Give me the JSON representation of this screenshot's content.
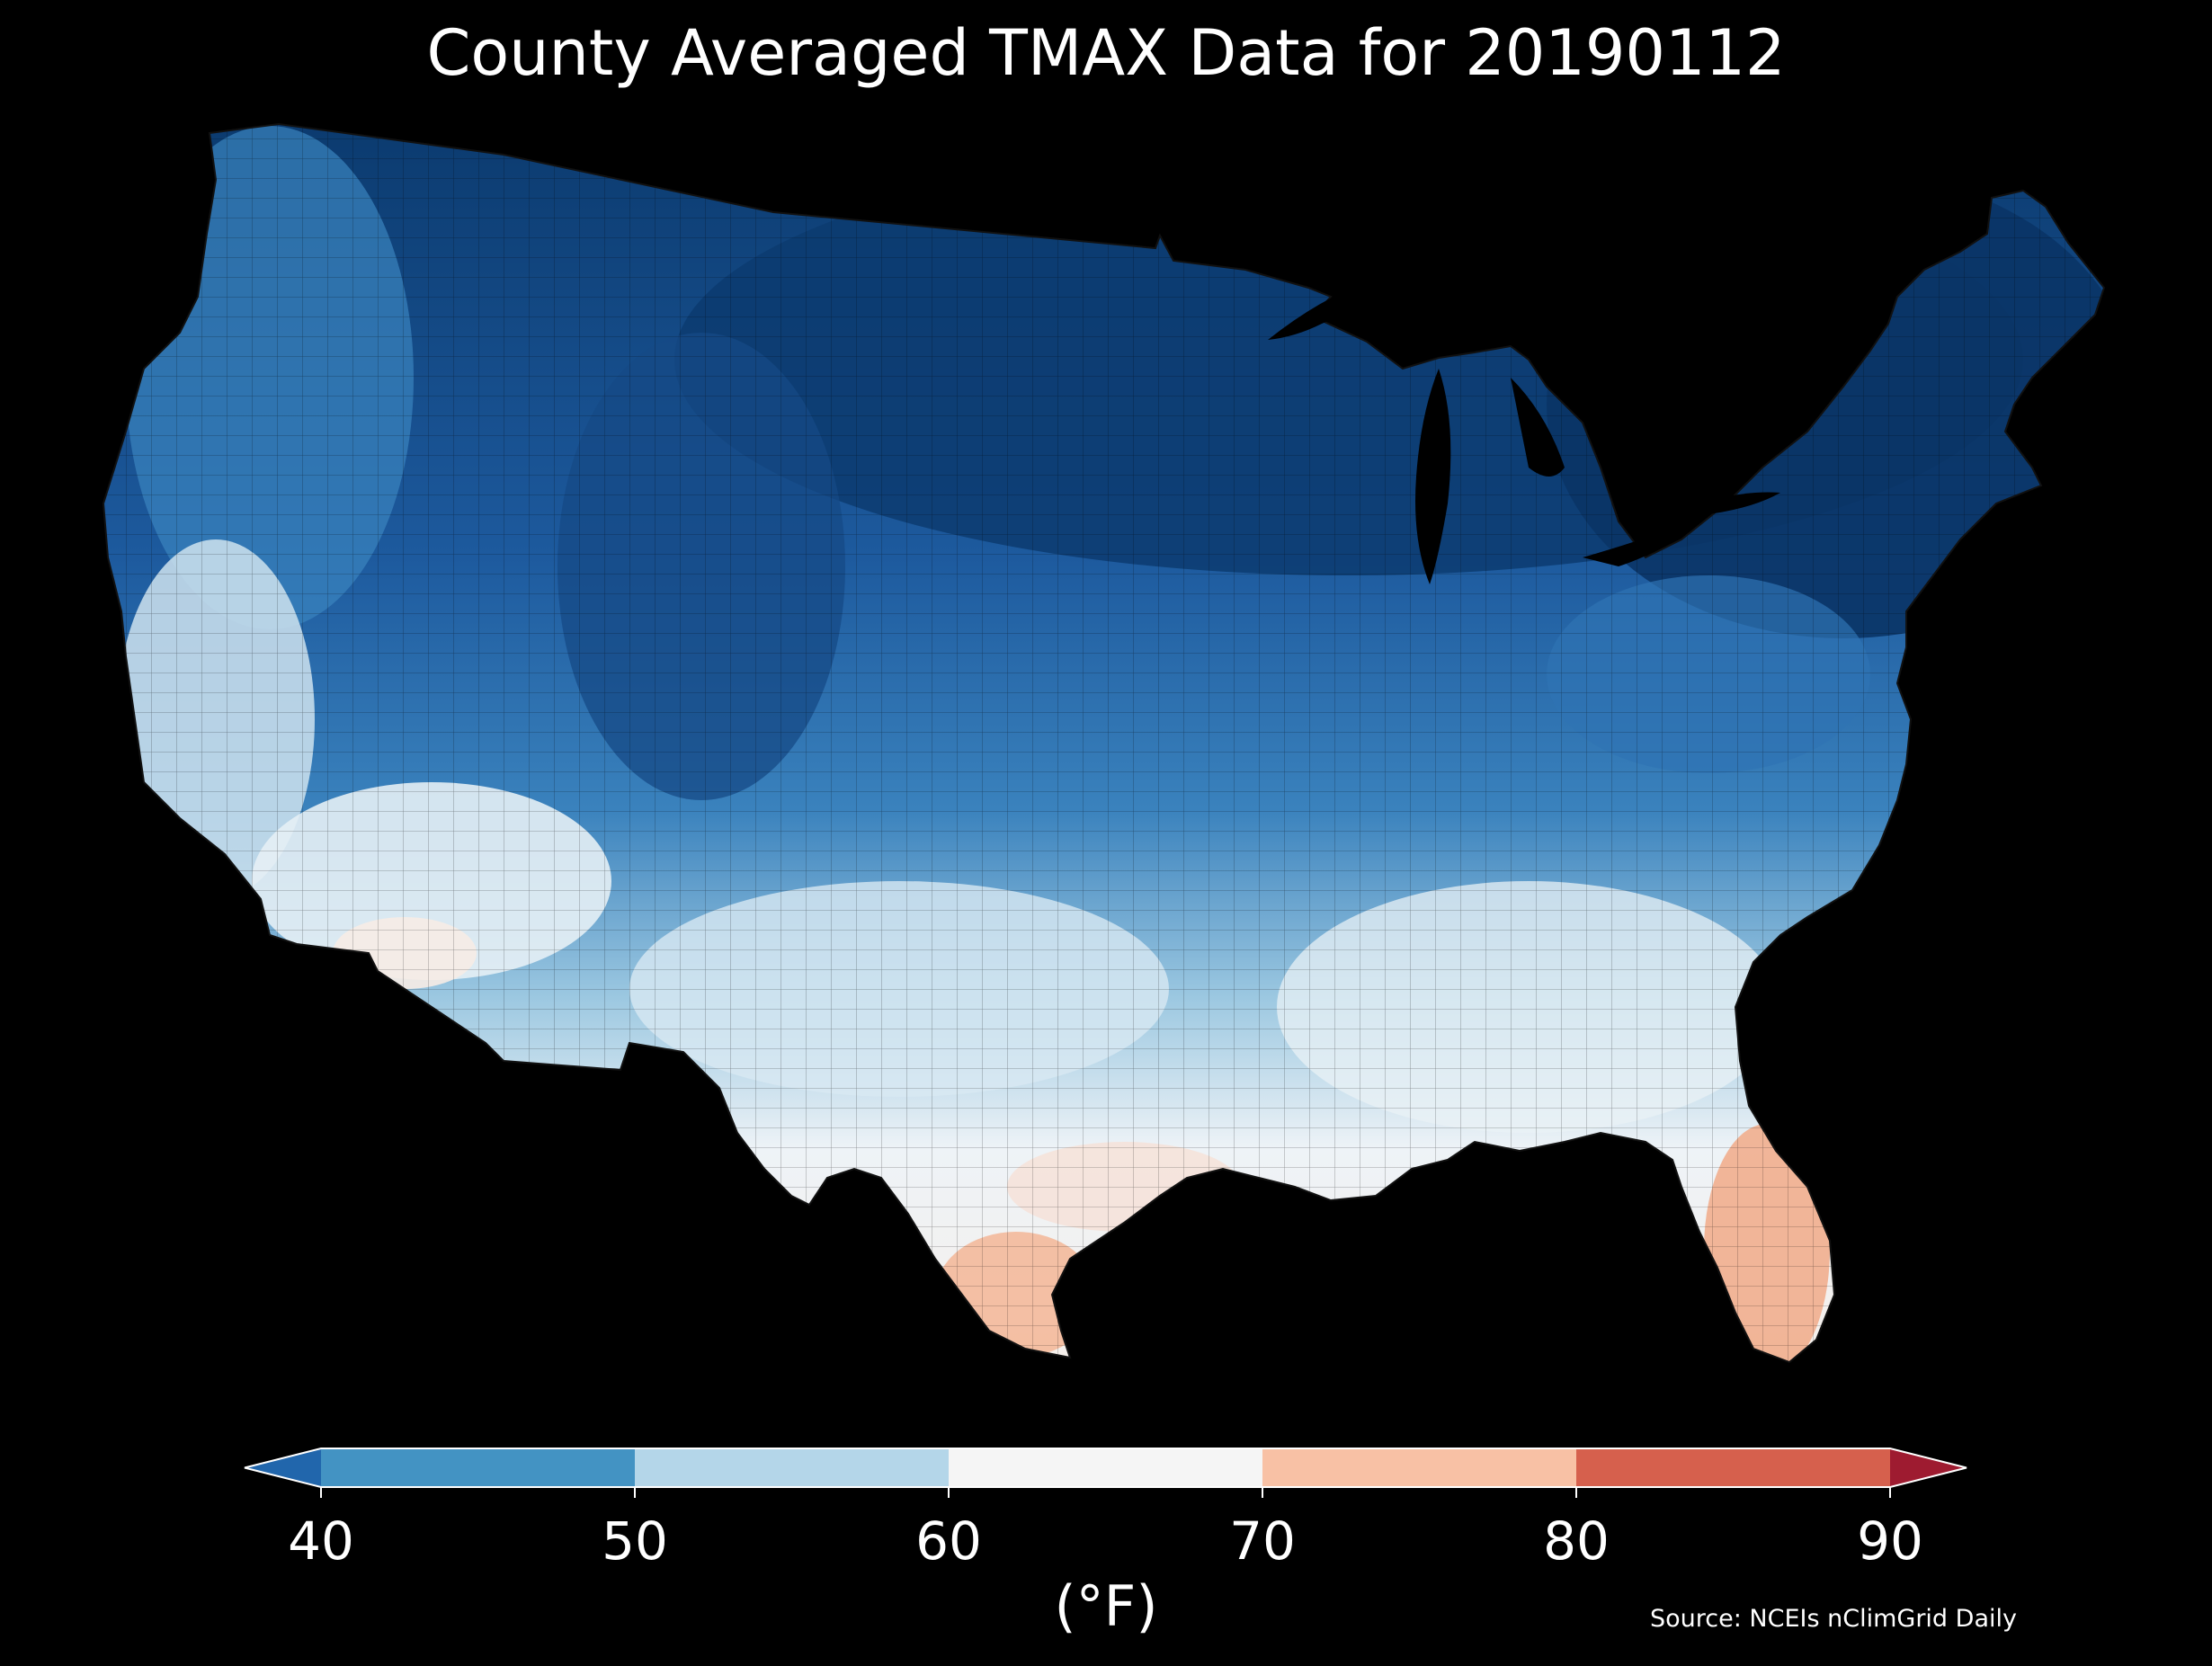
{
  "title": "County Averaged TMAX Data for 20190112",
  "map": {
    "background": "#000000",
    "land_gradient": [
      {
        "region": "northern-plains-great-lakes-northeast",
        "color": "#0b3a6e"
      },
      {
        "region": "northern-rockies",
        "color": "#1f5fa6"
      },
      {
        "region": "pacific-northwest",
        "color": "#4f91c4"
      },
      {
        "region": "central",
        "color": "#2b6fb3"
      },
      {
        "region": "mid-south",
        "color": "#89bfdc"
      },
      {
        "region": "southwest-desert",
        "color": "#eaf2f7"
      },
      {
        "region": "gulf-coast",
        "color": "#f3f3f3"
      },
      {
        "region": "south-texas-florida",
        "color": "#f4b89b"
      }
    ]
  },
  "colorbar": {
    "ticks": [
      "40",
      "50",
      "60",
      "70",
      "80",
      "90"
    ],
    "bins": [
      {
        "from": 40,
        "to": 50,
        "color": "#4393c3"
      },
      {
        "from": 50,
        "to": 60,
        "color": "#b4d6e9"
      },
      {
        "from": 60,
        "to": 70,
        "color": "#f5f5f5"
      },
      {
        "from": 70,
        "to": 80,
        "color": "#f8c1a5"
      },
      {
        "from": 80,
        "to": 90,
        "color": "#d6604d"
      }
    ],
    "under_color": "#2166ac",
    "over_color": "#9e1b30",
    "units": "(°F)"
  },
  "source": "Source: NCEIs nClimGrid Daily"
}
